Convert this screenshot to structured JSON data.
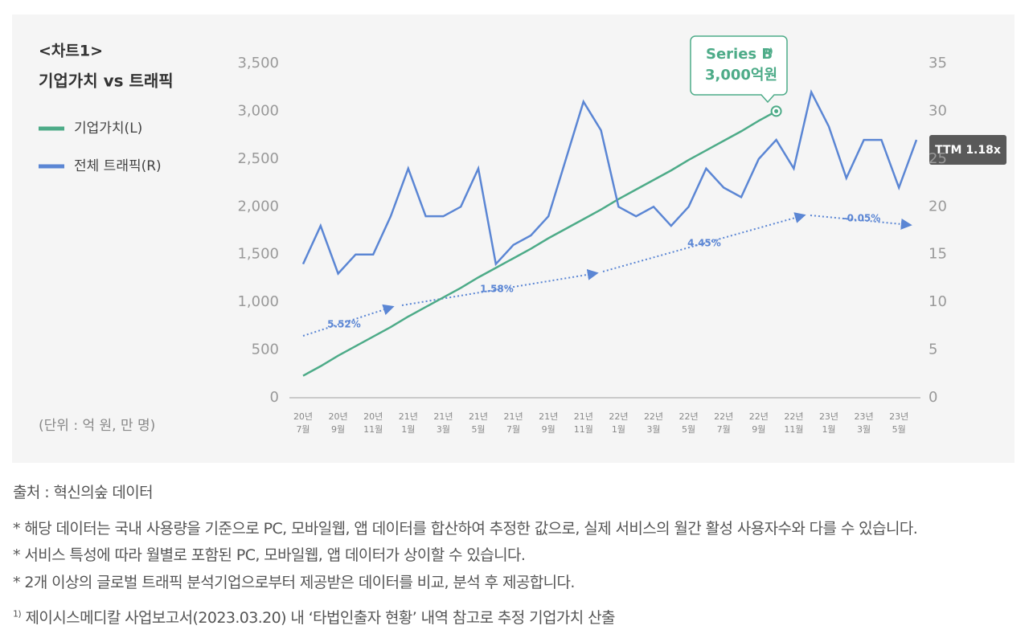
{
  "chart_data": {
    "type": "line",
    "title": "<차트1>",
    "subtitle": "기업가치 vs 트래픽",
    "unit_note": "(단위 : 억 원, 만 명)",
    "categories": [
      [
        "20년",
        "7월"
      ],
      null,
      [
        "20년",
        "9월"
      ],
      null,
      [
        "20년",
        "11월"
      ],
      null,
      [
        "21년",
        "1월"
      ],
      null,
      [
        "21년",
        "3월"
      ],
      null,
      [
        "21년",
        "5월"
      ],
      null,
      [
        "21년",
        "7월"
      ],
      null,
      [
        "21년",
        "9월"
      ],
      null,
      [
        "21년",
        "11월"
      ],
      null,
      [
        "22년",
        "1월"
      ],
      null,
      [
        "22년",
        "3월"
      ],
      null,
      [
        "22년",
        "5월"
      ],
      null,
      [
        "22년",
        "7월"
      ],
      null,
      [
        "22년",
        "9월"
      ],
      null,
      [
        "22년",
        "11월"
      ],
      null,
      [
        "23년",
        "1월"
      ],
      null,
      [
        "23년",
        "3월"
      ],
      null,
      [
        "23년",
        "5월"
      ],
      null
    ],
    "series": [
      {
        "name": "기업가치(L)",
        "color": "#4dab88",
        "axis": "y",
        "values": [
          230,
          330,
          440,
          540,
          640,
          740,
          850,
          950,
          1050,
          1150,
          1260,
          1360,
          1460,
          1560,
          1670,
          1770,
          1870,
          1970,
          2080,
          2180,
          2280,
          2380,
          2490,
          2590,
          2690,
          2790,
          2900,
          3000,
          null,
          null,
          null,
          null,
          null,
          null,
          null,
          null
        ]
      },
      {
        "name": "전체 트래픽(R)",
        "color": "#5b86d4",
        "axis": "y2",
        "values": [
          14,
          18,
          13,
          15,
          15,
          19,
          24,
          19,
          19,
          20,
          24,
          14,
          16,
          17,
          19,
          25,
          31,
          28,
          20,
          19,
          20,
          18,
          20,
          24,
          22,
          21,
          25,
          27,
          24,
          32,
          28.4,
          23,
          27,
          27,
          22,
          27
        ]
      }
    ],
    "ylim": [
      0,
      3500
    ],
    "yticks": [
      0,
      {
        "value": 500,
        "label": "500"
      },
      {
        "value": 1000,
        "label": "1,000"
      },
      {
        "value": 1500,
        "label": "1,500"
      },
      {
        "value": 2000,
        "label": "2,000"
      },
      {
        "value": 2500,
        "label": "2,500"
      },
      {
        "value": 3000,
        "label": "3,000"
      },
      {
        "value": 3500,
        "label": "3,500"
      }
    ],
    "y2lim": [
      0,
      35
    ],
    "y2ticks": [
      0,
      5,
      10,
      15,
      20,
      25,
      30,
      35
    ],
    "grid": false,
    "annotations": {
      "growth": [
        "5.52%",
        "1.58%",
        "4.45%",
        "-0.05%"
      ],
      "callout": {
        "title": "Series B",
        "mark": "1)",
        "value": "3,000억원"
      },
      "ttm": "TTM 1.18x"
    }
  },
  "notes": {
    "source": "출처 : 혁신의숲 데이터",
    "lines": [
      "* 해당 데이터는 국내 사용량을 기준으로 PC, 모바일웹, 앱 데이터를 합산하여 추정한 값으로, 실제 서비스의 월간 활성 사용자수와 다를 수 있습니다.",
      "* 서비스 특성에 따라 월별로 포함된 PC, 모바일웹, 앱 데이터가 상이할 수 있습니다.",
      "* 2개 이상의 글로벌 트래픽 분석기업으로부터 제공받은 데이터를 비교, 분석 후 제공합니다."
    ],
    "footnote": {
      "mark": "1)",
      "text": "제이시스메디칼 사업보고서(2023.03.20) 내 ‘타법인출자 현황’ 내역 참고로 추정 기업가치 산출"
    }
  }
}
